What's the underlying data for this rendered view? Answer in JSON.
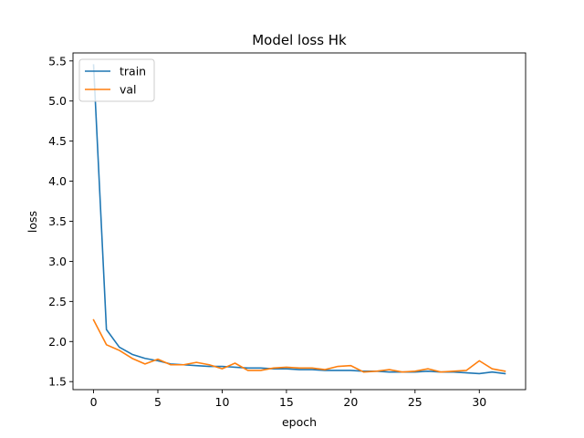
{
  "chart_data": {
    "type": "line",
    "title": "Model loss Hk",
    "xlabel": "epoch",
    "ylabel": "loss",
    "xlim": [
      -1.6,
      33.6
    ],
    "ylim": [
      1.4,
      5.6
    ],
    "xticks": [
      0,
      5,
      10,
      15,
      20,
      25,
      30
    ],
    "yticks": [
      1.5,
      2.0,
      2.5,
      3.0,
      3.5,
      4.0,
      4.5,
      5.0,
      5.5
    ],
    "x": [
      0,
      1,
      2,
      3,
      4,
      5,
      6,
      7,
      8,
      9,
      10,
      11,
      12,
      13,
      14,
      15,
      16,
      17,
      18,
      19,
      20,
      21,
      22,
      23,
      24,
      25,
      26,
      27,
      28,
      29,
      30,
      31,
      32
    ],
    "grid": false,
    "legend_position": "upper-left",
    "series": [
      {
        "name": "train",
        "color": "#1f77b4",
        "values": [
          5.45,
          2.15,
          1.93,
          1.84,
          1.79,
          1.76,
          1.72,
          1.71,
          1.7,
          1.69,
          1.69,
          1.68,
          1.67,
          1.67,
          1.66,
          1.66,
          1.65,
          1.65,
          1.64,
          1.64,
          1.64,
          1.63,
          1.63,
          1.62,
          1.62,
          1.62,
          1.63,
          1.62,
          1.62,
          1.61,
          1.6,
          1.62,
          1.6
        ]
      },
      {
        "name": "val",
        "color": "#ff7f0e",
        "values": [
          2.27,
          1.96,
          1.89,
          1.79,
          1.72,
          1.78,
          1.71,
          1.71,
          1.74,
          1.71,
          1.66,
          1.73,
          1.64,
          1.64,
          1.67,
          1.68,
          1.67,
          1.67,
          1.65,
          1.69,
          1.7,
          1.62,
          1.63,
          1.65,
          1.62,
          1.63,
          1.66,
          1.62,
          1.63,
          1.64,
          1.76,
          1.66,
          1.63
        ]
      }
    ]
  }
}
